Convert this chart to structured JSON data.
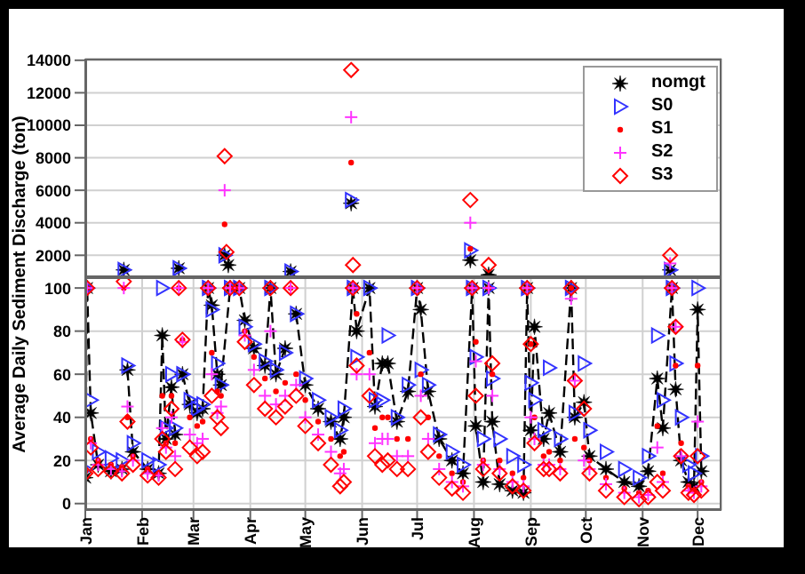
{
  "chart_data": [
    {
      "type": "scatter",
      "ylabel": "Average Daily Sediment Discharge (ton)",
      "xlim": [
        "--01-01",
        "--12-14"
      ],
      "xticks": [
        {
          "value": "--01-01",
          "label": null
        },
        {
          "value": "--02-01",
          "label": null
        },
        {
          "value": "--03-01",
          "label": null
        },
        {
          "value": "--04-01",
          "label": null
        },
        {
          "value": "--05-01",
          "label": null
        },
        {
          "value": "--06-01",
          "label": null
        },
        {
          "value": "--07-01",
          "label": null
        },
        {
          "value": "--08-01",
          "label": null
        },
        {
          "value": "--09-01",
          "label": null
        },
        {
          "value": "--10-01",
          "label": null
        },
        {
          "value": "--11-01",
          "label": null
        },
        {
          "value": "--12-01",
          "label": null
        }
      ],
      "ylim": [
        650,
        14100
      ],
      "yticks": [
        2000,
        4000,
        6000,
        8000,
        10000,
        12000,
        14000
      ],
      "grid": true,
      "legend": "top right",
      "tick_labels": "y",
      "series": [
        {
          "name": "nomgt",
          "color": "#000000",
          "marker": "star",
          "x": [
            "--01-22",
            "--02-21",
            "--03-18",
            "--03-20",
            "--04-23",
            "--05-26",
            "--07-30",
            "--08-09",
            "--11-16"
          ],
          "values": [
            1100,
            1200,
            2000,
            1400,
            1000,
            5200,
            1700,
            800,
            1100
          ]
        },
        {
          "name": "S0",
          "color": "#3333ff",
          "marker": "triangle",
          "x": [
            "--01-22",
            "--02-21",
            "--03-18",
            "--04-23",
            "--05-26",
            "--07-30",
            "--11-16"
          ],
          "values": [
            1100,
            1200,
            2000,
            1000,
            5400,
            2300,
            1100
          ]
        },
        {
          "name": "S1",
          "color": "#ff0000",
          "marker": "circle",
          "x": [
            "--03-18",
            "--05-26",
            "--07-30"
          ],
          "values": [
            3900,
            7700,
            2400
          ]
        },
        {
          "name": "S2",
          "color": "#ff33ff",
          "marker": "cross",
          "x": [
            "--03-18",
            "--05-26",
            "--07-30",
            "--11-16"
          ],
          "values": [
            6000,
            10500,
            4000,
            1500
          ]
        },
        {
          "name": "S3",
          "color": "#ff0000",
          "marker": "diamond",
          "x": [
            "--03-18",
            "--03-19",
            "--05-26",
            "--05-27",
            "--07-30",
            "--08-09",
            "--11-16"
          ],
          "values": [
            8100,
            2200,
            13400,
            1400,
            5400,
            1400,
            2000
          ]
        }
      ]
    },
    {
      "type": "scatter",
      "xlim": [
        "--01-01",
        "--12-14"
      ],
      "xticks": [
        {
          "value": "--01-01",
          "label": "Jan"
        },
        {
          "value": "--02-01",
          "label": "Feb"
        },
        {
          "value": "--03-01",
          "label": "Mar"
        },
        {
          "value": "--04-01",
          "label": "Apr"
        },
        {
          "value": "--05-01",
          "label": "May"
        },
        {
          "value": "--06-01",
          "label": "Jun"
        },
        {
          "value": "--07-01",
          "label": "Jul"
        },
        {
          "value": "--08-01",
          "label": "Aug"
        },
        {
          "value": "--09-01",
          "label": "Sep"
        },
        {
          "value": "--10-01",
          "label": "Oct"
        },
        {
          "value": "--11-01",
          "label": "Nov"
        },
        {
          "value": "--12-01",
          "label": "Dec"
        }
      ],
      "ylim": [
        -3,
        105
      ],
      "yticks": [
        0,
        20,
        40,
        60,
        80,
        100
      ],
      "grid": true,
      "x": [
        "--01-01",
        "--01-02",
        "--01-04",
        "--01-08",
        "--01-15",
        "--01-21",
        "--01-22",
        "--01-24",
        "--01-27",
        "--02-04",
        "--02-10",
        "--02-12",
        "--02-14",
        "--02-17",
        "--02-19",
        "--02-21",
        "--02-23",
        "--02-27",
        "--03-03",
        "--03-06",
        "--03-09",
        "--03-11",
        "--03-14",
        "--03-16",
        "--03-21",
        "--03-26",
        "--03-29",
        "--04-03",
        "--04-09",
        "--04-12",
        "--04-15",
        "--04-20",
        "--04-23",
        "--04-26",
        "--05-01",
        "--05-08",
        "--05-15",
        "--05-20",
        "--05-22",
        "--05-27",
        "--05-29",
        "--06-05",
        "--06-08",
        "--06-12",
        "--06-15",
        "--06-20",
        "--06-26",
        "--07-01",
        "--07-03",
        "--07-07",
        "--07-13",
        "--07-20",
        "--07-26",
        "--07-31",
        "--08-02",
        "--08-06",
        "--08-09",
        "--08-11",
        "--08-15",
        "--08-22",
        "--08-28",
        "--08-30",
        "--09-01",
        "--09-03",
        "--09-08",
        "--09-11",
        "--09-17",
        "--09-23",
        "--09-25",
        "--09-30",
        "--10-03",
        "--10-12",
        "--10-22",
        "--10-30",
        "--11-04",
        "--11-09",
        "--11-12",
        "--11-17",
        "--11-19",
        "--11-22",
        "--11-26",
        "--11-29",
        "--12-01",
        "--12-03"
      ],
      "series": [
        {
          "type": "line",
          "line_style": "dashed",
          "color": "#000000",
          "marker": "star",
          "values": [
            12,
            100,
            42,
            18,
            15,
            16,
            null,
            62,
            24,
            16,
            14,
            78,
            30,
            54,
            32,
            null,
            60,
            46,
            42,
            44,
            100,
            92,
            60,
            55,
            100,
            100,
            85,
            72,
            64,
            100,
            60,
            72,
            null,
            88,
            55,
            44,
            38,
            30,
            40,
            100,
            80,
            100,
            45,
            65,
            65,
            38,
            52,
            100,
            90,
            52,
            30,
            20,
            14,
            100,
            36,
            10,
            100,
            38,
            9,
            6,
            5,
            100,
            34,
            82,
            30,
            42,
            24,
            100,
            40,
            47,
            22,
            16,
            10,
            8,
            15,
            58,
            35,
            100,
            53,
            20,
            10,
            8,
            90,
            15
          ]
        },
        {
          "color": "#3333ff",
          "marker": "triangle",
          "values": [
            16,
            100,
            48,
            24,
            21,
            20,
            null,
            64,
            28,
            20,
            18,
            100,
            35,
            60,
            35,
            null,
            60,
            48,
            44,
            46,
            100,
            90,
            65,
            55,
            100,
            100,
            82,
            74,
            66,
            100,
            62,
            70,
            null,
            88,
            58,
            48,
            40,
            34,
            44,
            100,
            68,
            100,
            48,
            48,
            78,
            40,
            55,
            100,
            62,
            55,
            32,
            24,
            18,
            100,
            68,
            30,
            100,
            58,
            30,
            22,
            18,
            100,
            56,
            48,
            34,
            63,
            30,
            100,
            42,
            65,
            34,
            24,
            16,
            12,
            22,
            78,
            48,
            100,
            65,
            40,
            18,
            14,
            100,
            22
          ]
        },
        {
          "color": "#ff0000",
          "marker": "circle",
          "values": [
            15,
            100,
            30,
            20,
            18,
            17,
            100,
            40,
            22,
            16,
            14,
            50,
            28,
            50,
            28,
            100,
            76,
            40,
            36,
            38,
            100,
            70,
            52,
            50,
            100,
            100,
            80,
            68,
            58,
            100,
            52,
            56,
            100,
            60,
            48,
            38,
            30,
            22,
            24,
            100,
            88,
            70,
            35,
            40,
            40,
            30,
            30,
            100,
            60,
            40,
            22,
            14,
            10,
            100,
            75,
            20,
            100,
            60,
            20,
            14,
            12,
            100,
            74,
            40,
            22,
            24,
            20,
            100,
            30,
            26,
            20,
            12,
            7,
            5,
            6,
            36,
            14,
            100,
            64,
            28,
            8,
            6,
            64,
            10
          ]
        },
        {
          "color": "#ff33ff",
          "marker": "cross",
          "values": [
            null,
            100,
            28,
            18,
            16,
            15,
            100,
            45,
            20,
            14,
            13,
            35,
            26,
            40,
            22,
            100,
            75,
            32,
            28,
            30,
            100,
            60,
            42,
            45,
            100,
            100,
            78,
            62,
            50,
            80,
            46,
            50,
            100,
            55,
            40,
            32,
            24,
            14,
            16,
            100,
            60,
            60,
            28,
            30,
            30,
            22,
            22,
            100,
            50,
            30,
            16,
            10,
            8,
            100,
            66,
            18,
            100,
            50,
            16,
            10,
            8,
            100,
            40,
            30,
            18,
            18,
            16,
            95,
            57,
            20,
            16,
            9,
            5,
            3,
            4,
            26,
            10,
            100,
            82,
            22,
            6,
            5,
            38,
            8
          ]
        },
        {
          "color": "#ff0000",
          "marker": "diamond",
          "values": [
            14,
            100,
            26,
            16,
            15,
            14,
            103,
            38,
            18,
            13,
            12,
            30,
            24,
            44,
            16,
            100,
            76,
            26,
            22,
            24,
            100,
            50,
            40,
            35,
            100,
            100,
            75,
            55,
            44,
            100,
            40,
            45,
            100,
            50,
            36,
            28,
            18,
            8,
            10,
            100,
            64,
            50,
            22,
            18,
            20,
            16,
            16,
            100,
            40,
            24,
            12,
            7,
            5,
            100,
            50,
            16,
            null,
            65,
            14,
            8,
            6,
            100,
            74,
            28,
            16,
            16,
            14,
            100,
            57,
            44,
            14,
            6,
            3,
            2,
            3,
            10,
            6,
            100,
            82,
            22,
            5,
            4,
            22,
            6
          ]
        }
      ]
    }
  ]
}
